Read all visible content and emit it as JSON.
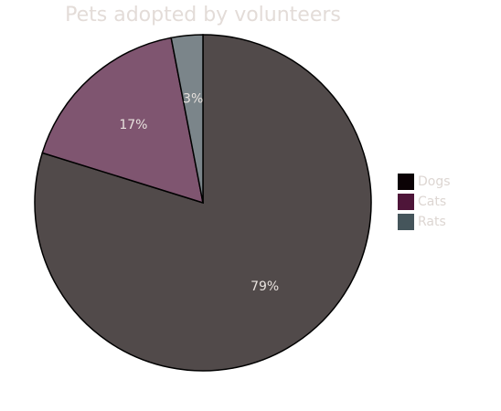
{
  "chart_data": {
    "type": "pie",
    "title": "Pets adopted by volunteers",
    "categories": [
      "Dogs",
      "Cats",
      "Rats"
    ],
    "values": [
      79,
      17,
      3
    ],
    "data_labels": [
      "79%",
      "17%",
      "3%"
    ],
    "slice_colors": [
      "#514a4a",
      "#7f5570",
      "#7b858a"
    ],
    "legend_colors": [
      "#0b0205",
      "#4e1539",
      "#45555b"
    ],
    "legend_position": "right"
  }
}
